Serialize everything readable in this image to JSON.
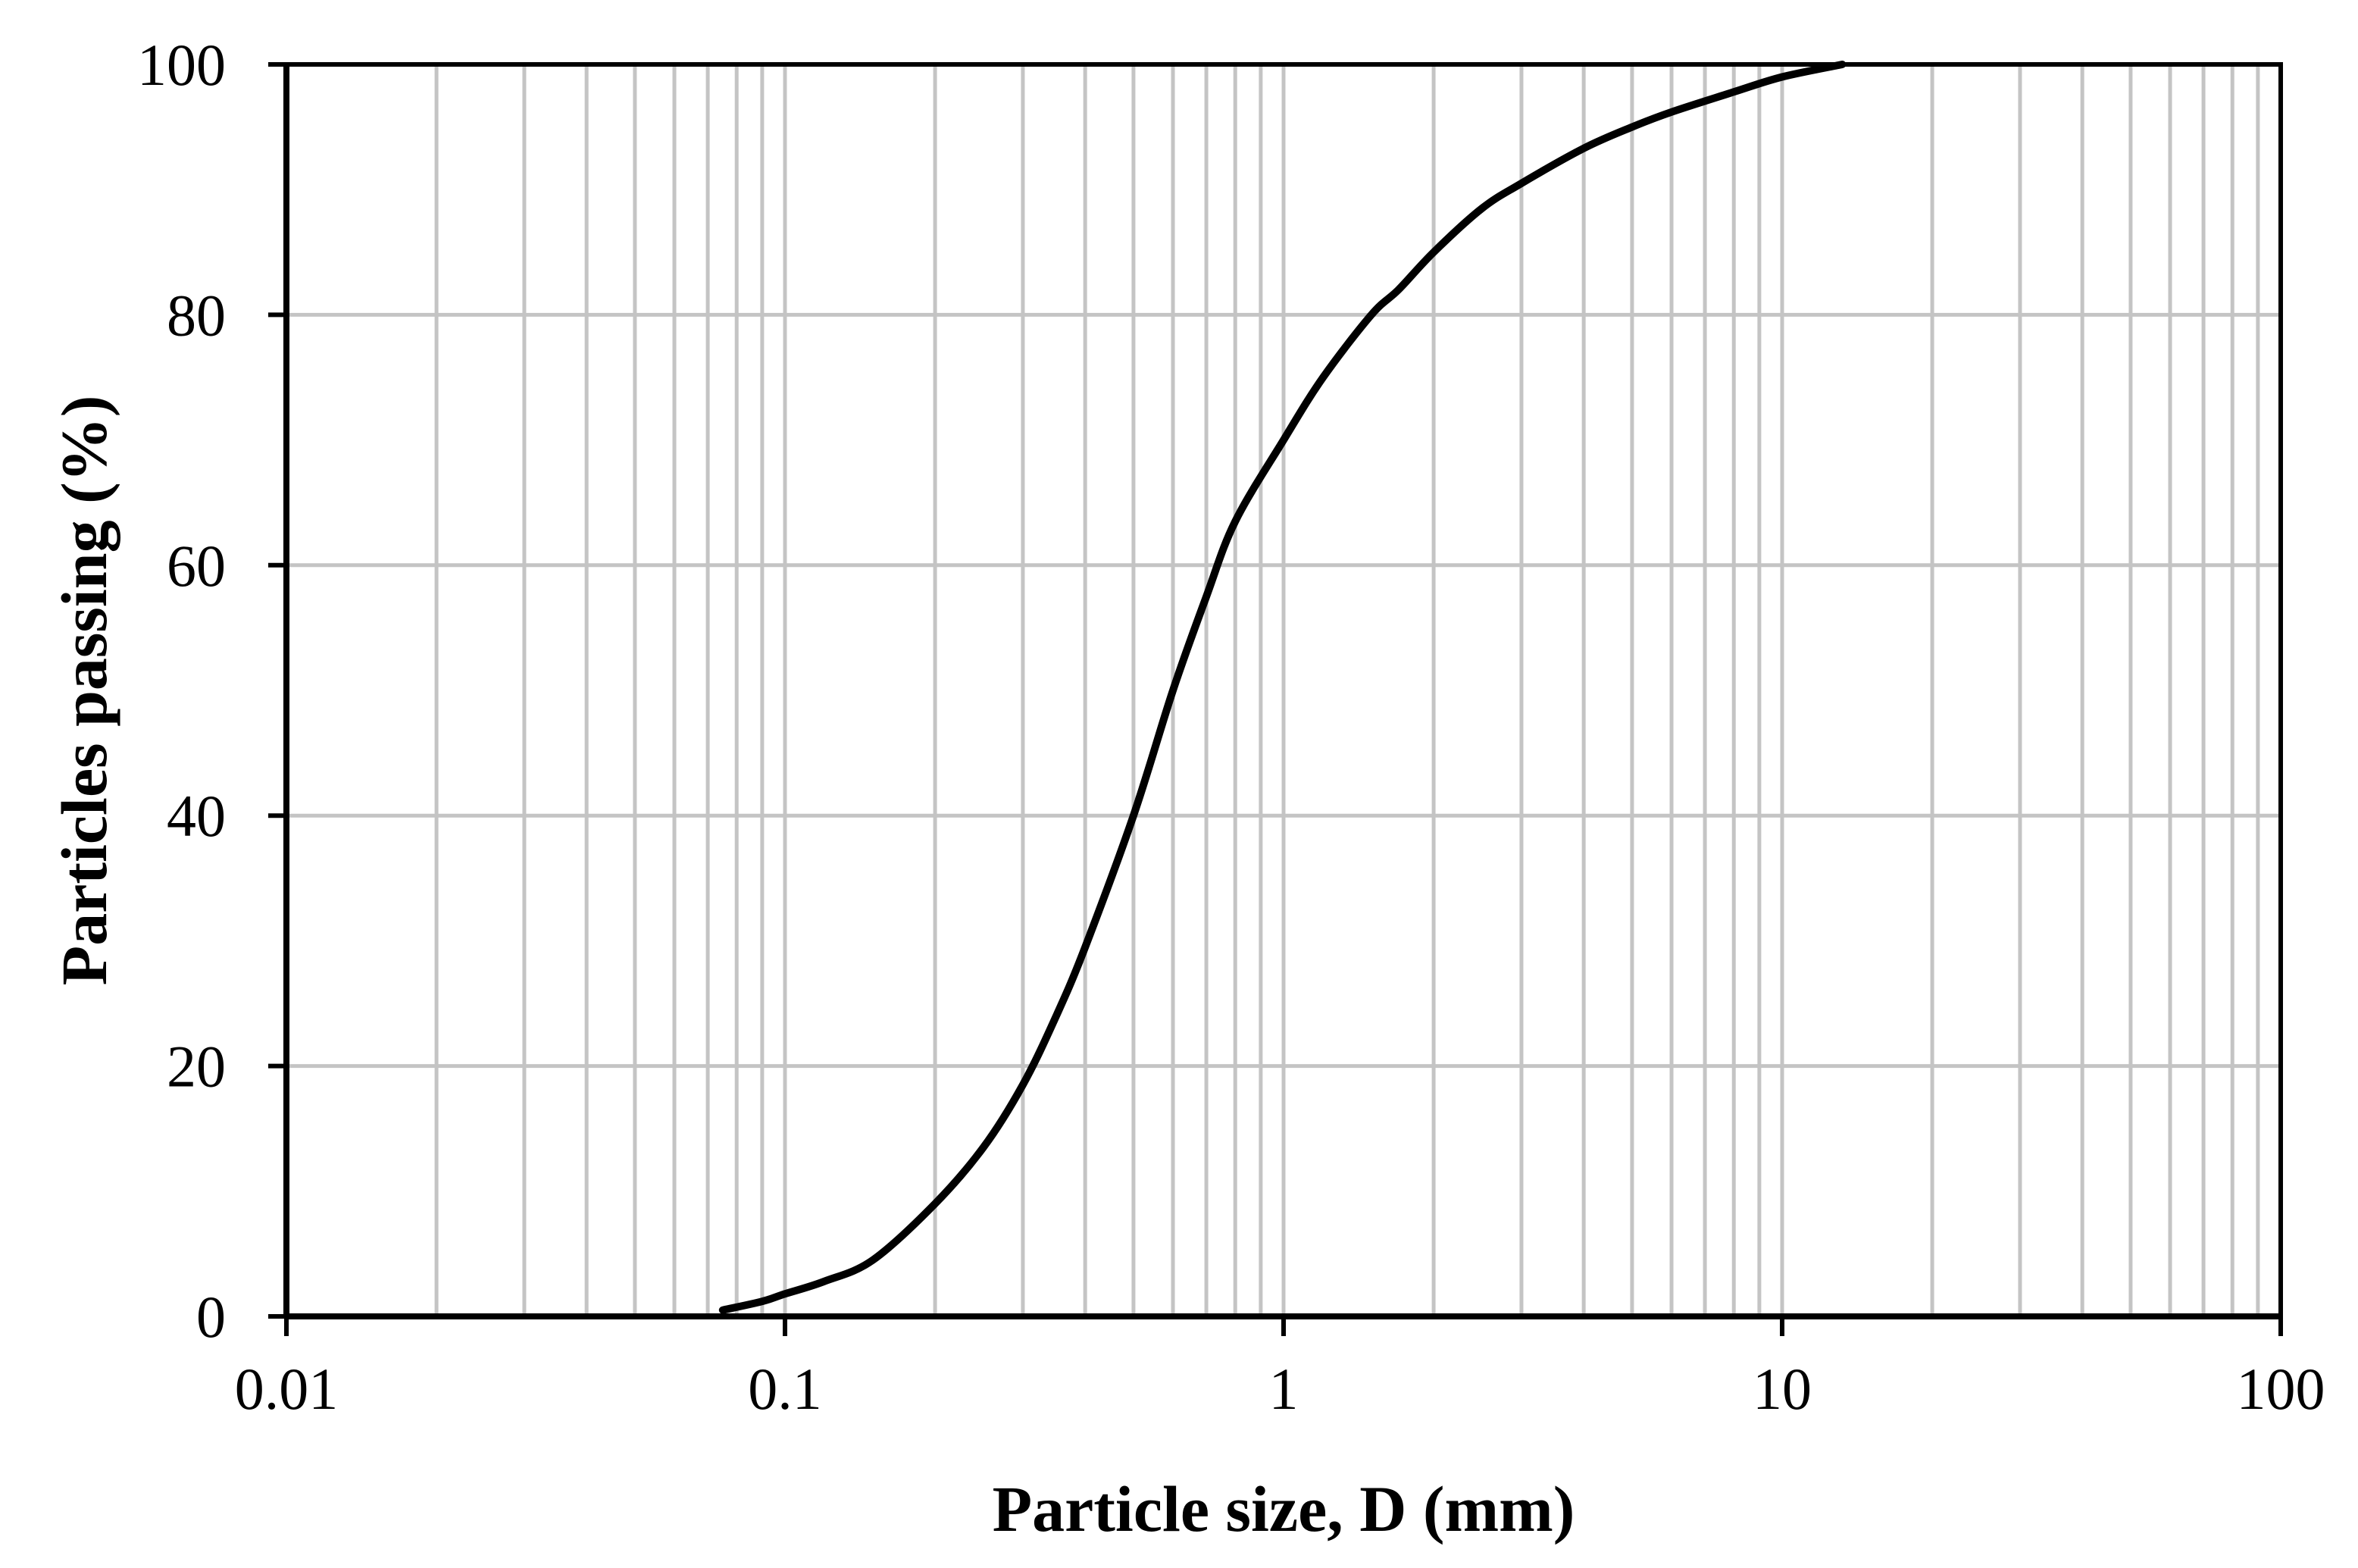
{
  "chart_data": {
    "type": "line",
    "title": "",
    "xlabel": "Particle size, D (mm)",
    "ylabel": "Particles passing (%)",
    "x_scale": "log",
    "xlim": [
      0.01,
      100
    ],
    "ylim": [
      0,
      100
    ],
    "x_ticks": [
      0.01,
      0.1,
      1,
      10,
      100
    ],
    "x_tick_labels": [
      "0.01",
      "0.1",
      "1",
      "10",
      "100"
    ],
    "y_ticks": [
      0,
      20,
      40,
      60,
      80,
      100
    ],
    "y_tick_labels": [
      "0",
      "20",
      "40",
      "60",
      "80",
      "100"
    ],
    "grid": true,
    "legend": "none",
    "line_color": "#000000",
    "grid_color": "#c4c4c4",
    "series": [
      {
        "x": [
          0.075,
          0.09,
          0.1,
          0.12,
          0.15,
          0.2,
          0.25,
          0.3,
          0.35,
          0.4,
          0.5,
          0.6,
          0.7,
          0.8,
          1.0,
          1.2,
          1.5,
          1.7,
          2.0,
          2.5,
          3.0,
          4.0,
          5.0,
          6.0,
          8.0,
          10.0,
          13.2
        ],
        "y": [
          0.5,
          1.2,
          1.8,
          2.8,
          4.5,
          9.0,
          13.5,
          18.5,
          24.0,
          29.5,
          40.0,
          50.0,
          57.5,
          63.5,
          70.0,
          75.0,
          80.0,
          82.0,
          85.0,
          88.5,
          90.5,
          93.3,
          95.0,
          96.2,
          97.8,
          99.0,
          100.0
        ]
      }
    ]
  }
}
